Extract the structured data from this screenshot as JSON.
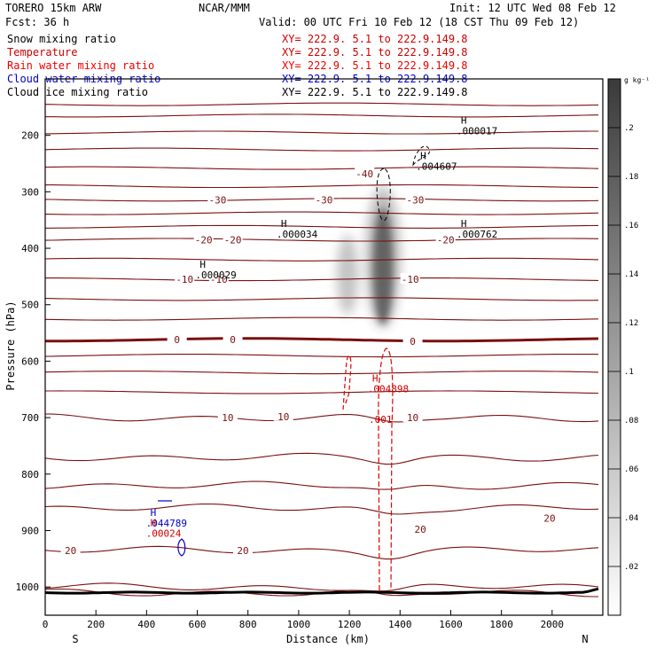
{
  "header": {
    "model": "TORERO  15km ARW",
    "org": "NCAR/MMM",
    "init": "Init: 12 UTC Wed 08 Feb 12",
    "fcst": "Fcst:    36 h",
    "valid": "Valid: 00 UTC Fri 10 Feb 12 (18 CST Thu 09 Feb 12)"
  },
  "fields": [
    {
      "name": "Snow mixing ratio",
      "xy": "XY= 222.9.  5.1 to 222.9.149.8",
      "color": "#000000"
    },
    {
      "name": "Temperature",
      "xy": "XY= 222.9.  5.1 to 222.9.149.8",
      "color": "#cc0000"
    },
    {
      "name": "Rain water mixing ratio",
      "xy": "XY= 222.9.  5.1 to 222.9.149.8",
      "color": "#ee0000"
    },
    {
      "name": "Cloud water mixing ratio",
      "xy": "XY= 222.9.  5.1 to 222.9.149.8",
      "color": "#0000cc"
    },
    {
      "name": "Cloud ice mixing ratio",
      "xy": "XY= 222.9.  5.1 to 222.9.149.8",
      "color": "#000000"
    }
  ],
  "colors": {
    "isotherm": "#7a1010",
    "freezing_line": "#7a1010",
    "rain": "#e00000",
    "cloud_water": "#0000cc",
    "ice": "#000000",
    "terrain": "#000000"
  },
  "chart_data": {
    "type": "cross-section",
    "xlabel": "Distance (km)",
    "ylabel": "Pressure (hPa)",
    "xlim": [
      0,
      2200
    ],
    "ylim": [
      1050,
      100
    ],
    "xticks": [
      0,
      200,
      400,
      600,
      800,
      1000,
      1200,
      1400,
      1600,
      1800,
      2000
    ],
    "yticks": [
      200,
      300,
      400,
      500,
      600,
      700,
      800,
      900,
      1000
    ],
    "endpoints": {
      "left": "S",
      "right": "N"
    },
    "colorbar": {
      "unit": "g kg⁻¹",
      "ticks": [
        ".02",
        ".04",
        ".06",
        ".08",
        ".1",
        ".12",
        ".14",
        ".16",
        ".18",
        ".2"
      ]
    },
    "isotherm_labels": [
      {
        "text": "-40",
        "x": 1260,
        "p": 268
      },
      {
        "text": "-30",
        "x": 680,
        "p": 314
      },
      {
        "text": "-30",
        "x": 1100,
        "p": 314
      },
      {
        "text": "-30",
        "x": 1460,
        "p": 314
      },
      {
        "text": "-20",
        "x": 625,
        "p": 385
      },
      {
        "text": "-20",
        "x": 740,
        "p": 385
      },
      {
        "text": "-20",
        "x": 1580,
        "p": 385
      },
      {
        "text": "-10",
        "x": 550,
        "p": 455
      },
      {
        "text": "-10",
        "x": 685,
        "p": 455
      },
      {
        "text": "-10",
        "x": 1440,
        "p": 455
      },
      {
        "text": "0",
        "x": 520,
        "p": 562
      },
      {
        "text": "0",
        "x": 740,
        "p": 562
      },
      {
        "text": "0",
        "x": 1450,
        "p": 565
      },
      {
        "text": "10",
        "x": 720,
        "p": 700
      },
      {
        "text": "10",
        "x": 940,
        "p": 698
      },
      {
        "text": "10",
        "x": 1450,
        "p": 700
      },
      {
        "text": "20",
        "x": 100,
        "p": 935
      },
      {
        "text": "20",
        "x": 780,
        "p": 935
      },
      {
        "text": "20",
        "x": 1480,
        "p": 898
      },
      {
        "text": "20",
        "x": 1990,
        "p": 878
      }
    ],
    "extrema": [
      {
        "text": "H",
        "value": ".000017",
        "x": 1640,
        "p": 195,
        "color": "#000000"
      },
      {
        "text": "H",
        "value": ".004607",
        "x": 1480,
        "p": 258,
        "color": "#000000"
      },
      {
        "text": "H",
        "value": ".000034",
        "x": 930,
        "p": 378,
        "color": "#000000"
      },
      {
        "text": "H",
        "value": ".000762",
        "x": 1640,
        "p": 378,
        "color": "#000000"
      },
      {
        "text": "H",
        "value": ".000029",
        "x": 610,
        "p": 450,
        "color": "#000000"
      },
      {
        "text": "H",
        "value": ".004898",
        "x": 1290,
        "p": 652,
        "color": "#cc0000"
      },
      {
        "text": "H",
        "value": ".044789",
        "x": 415,
        "p": 890,
        "color": "#0000cc"
      },
      {
        "text": "H",
        "value": ".00024",
        "x": 415,
        "p": 908,
        "color": "#cc0000"
      }
    ],
    "rain_label": ".001",
    "isotherms_p_at_left": [
      145,
      165,
      195,
      225,
      258,
      290,
      314,
      338,
      362,
      385,
      420,
      455,
      490,
      525,
      562,
      590,
      620,
      655,
      700,
      770,
      820,
      860,
      935,
      1000,
      1010
    ]
  }
}
